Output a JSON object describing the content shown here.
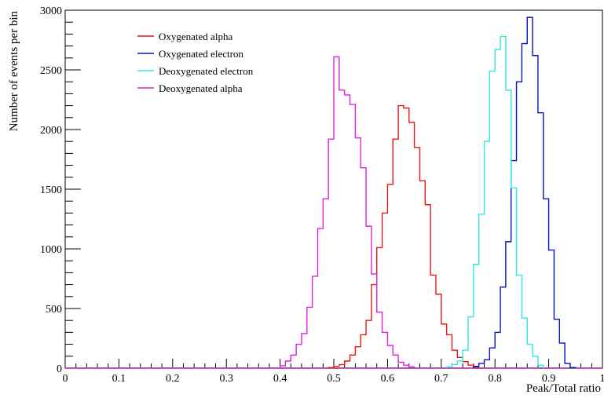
{
  "chart_data": {
    "type": "histogram",
    "xlabel": "Peak/Total ratio",
    "ylabel": "Number of events per bin",
    "xlim": [
      0,
      1
    ],
    "ylim": [
      0,
      3000
    ],
    "grid": false,
    "legend_position": "top-left",
    "xticks": [
      "0",
      "0.1",
      "0.2",
      "0.3",
      "0.4",
      "0.5",
      "0.6",
      "0.7",
      "0.8",
      "0.9",
      "1"
    ],
    "yticks": [
      "0",
      "500",
      "1000",
      "1500",
      "2000",
      "2500",
      "3000"
    ],
    "bin_width": 0.01,
    "series": [
      {
        "name": "Oxygenated alpha",
        "color": "#e41a1a",
        "bins": [
          [
            0.49,
            5
          ],
          [
            0.5,
            15
          ],
          [
            0.51,
            30
          ],
          [
            0.52,
            60
          ],
          [
            0.53,
            110
          ],
          [
            0.54,
            180
          ],
          [
            0.55,
            280
          ],
          [
            0.56,
            400
          ],
          [
            0.57,
            700
          ],
          [
            0.58,
            1010
          ],
          [
            0.59,
            1300
          ],
          [
            0.6,
            1540
          ],
          [
            0.61,
            1920
          ],
          [
            0.62,
            2200
          ],
          [
            0.63,
            2180
          ],
          [
            0.64,
            2060
          ],
          [
            0.65,
            1850
          ],
          [
            0.66,
            1570
          ],
          [
            0.67,
            1370
          ],
          [
            0.68,
            780
          ],
          [
            0.69,
            620
          ],
          [
            0.7,
            370
          ],
          [
            0.71,
            280
          ],
          [
            0.72,
            150
          ],
          [
            0.73,
            90
          ],
          [
            0.74,
            55
          ],
          [
            0.75,
            25
          ],
          [
            0.76,
            8
          ]
        ]
      },
      {
        "name": "Oxygenated electron",
        "color": "#0a10c2",
        "bins": [
          [
            0.76,
            15
          ],
          [
            0.77,
            40
          ],
          [
            0.78,
            70
          ],
          [
            0.79,
            170
          ],
          [
            0.8,
            300
          ],
          [
            0.81,
            680
          ],
          [
            0.82,
            1060
          ],
          [
            0.83,
            1740
          ],
          [
            0.84,
            2400
          ],
          [
            0.85,
            2720
          ],
          [
            0.86,
            2940
          ],
          [
            0.87,
            2620
          ],
          [
            0.88,
            2140
          ],
          [
            0.89,
            1420
          ],
          [
            0.9,
            990
          ],
          [
            0.91,
            410
          ],
          [
            0.92,
            210
          ],
          [
            0.93,
            40
          ],
          [
            0.94,
            5
          ]
        ]
      },
      {
        "name": "Deoxygenated electron",
        "color": "#2de8e8",
        "bins": [
          [
            0.71,
            10
          ],
          [
            0.72,
            30
          ],
          [
            0.73,
            60
          ],
          [
            0.74,
            150
          ],
          [
            0.75,
            430
          ],
          [
            0.76,
            870
          ],
          [
            0.77,
            1290
          ],
          [
            0.78,
            1900
          ],
          [
            0.79,
            2490
          ],
          [
            0.8,
            2670
          ],
          [
            0.81,
            2780
          ],
          [
            0.82,
            2330
          ],
          [
            0.83,
            1510
          ],
          [
            0.84,
            780
          ],
          [
            0.85,
            420
          ],
          [
            0.86,
            200
          ],
          [
            0.87,
            100
          ],
          [
            0.88,
            25
          ]
        ]
      },
      {
        "name": "Deoxygenated alpha",
        "color": "#e21fe0",
        "bins": [
          [
            0.4,
            20
          ],
          [
            0.41,
            60
          ],
          [
            0.42,
            110
          ],
          [
            0.43,
            200
          ],
          [
            0.44,
            290
          ],
          [
            0.45,
            510
          ],
          [
            0.46,
            770
          ],
          [
            0.47,
            1170
          ],
          [
            0.48,
            1420
          ],
          [
            0.49,
            1920
          ],
          [
            0.5,
            2610
          ],
          [
            0.51,
            2330
          ],
          [
            0.52,
            2290
          ],
          [
            0.53,
            2210
          ],
          [
            0.54,
            1930
          ],
          [
            0.55,
            1680
          ],
          [
            0.56,
            1190
          ],
          [
            0.57,
            790
          ],
          [
            0.58,
            470
          ],
          [
            0.59,
            300
          ],
          [
            0.6,
            190
          ],
          [
            0.61,
            110
          ],
          [
            0.62,
            50
          ],
          [
            0.63,
            25
          ],
          [
            0.64,
            10
          ]
        ]
      }
    ]
  }
}
